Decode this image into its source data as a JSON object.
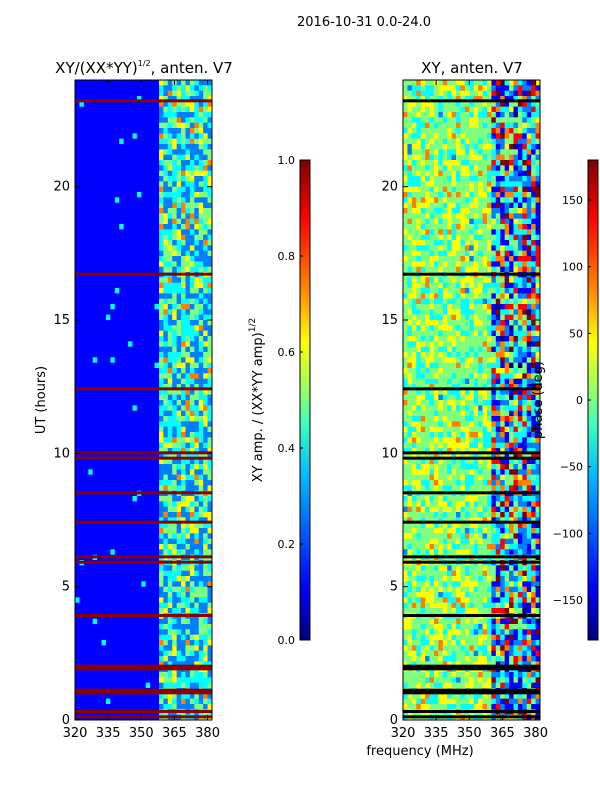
{
  "figure_title": "2016-10-31 0.0-24.0",
  "shared_xlabel": "frequency (MHz)",
  "colormap": [
    "#00007f",
    "#0000ff",
    "#007fff",
    "#00ffff",
    "#7fff7f",
    "#ffff00",
    "#ff7f00",
    "#ff0000",
    "#7f0000"
  ],
  "band_color": "#8b0000",
  "chart_data": [
    {
      "type": "heatmap",
      "title_main": "XY/(XX*YY)",
      "title_exp": "1/2",
      "title_rest": ", anten. V7",
      "xlabel": "",
      "ylabel": "UT (hours)",
      "xlim": [
        320,
        382
      ],
      "ylim": [
        0,
        24
      ],
      "xticks": [
        320,
        335,
        350,
        365,
        380
      ],
      "xtick_labels": [
        "320",
        "335",
        "350",
        "365",
        "380"
      ],
      "yticks": [
        0,
        5,
        10,
        15,
        20
      ],
      "ytick_labels": [
        "0",
        "5",
        "10",
        "15",
        "20"
      ],
      "flagged_hours": [
        0.1,
        0.3,
        1.0,
        1.1,
        1.9,
        2.0,
        3.9,
        5.9,
        6.1,
        7.4,
        8.5,
        9.8,
        10.0,
        12.4,
        16.7,
        23.2
      ],
      "colorbar": {
        "label_main": "XY amp. / (XX*YY amp)",
        "label_exp": "1/2",
        "range": [
          0.0,
          1.0
        ],
        "ticks": [
          0.0,
          0.2,
          0.4,
          0.6,
          0.8,
          1.0
        ],
        "tick_labels": [
          "0.0",
          "0.2",
          "0.4",
          "0.6",
          "0.8",
          "1.0"
        ]
      }
    },
    {
      "type": "heatmap",
      "title_main": "XY, anten. V7",
      "xlabel": "frequency (MHz)",
      "ylabel": "",
      "xlim": [
        320,
        382
      ],
      "ylim": [
        0,
        24
      ],
      "xticks": [
        320,
        335,
        350,
        365,
        380
      ],
      "xtick_labels": [
        "320",
        "335",
        "350",
        "365",
        "380"
      ],
      "yticks": [
        0,
        5,
        10,
        15,
        20
      ],
      "ytick_labels": [
        "0",
        "5",
        "10",
        "15",
        "20"
      ],
      "flagged_hours": [
        0.1,
        0.3,
        1.0,
        1.1,
        1.9,
        2.0,
        3.9,
        5.9,
        6.1,
        7.4,
        8.5,
        9.8,
        10.0,
        12.4,
        16.7,
        23.2
      ],
      "colorbar": {
        "label_main": "phase (deg)",
        "range": [
          -180,
          180
        ],
        "ticks": [
          -150,
          -100,
          -50,
          0,
          50,
          100,
          150
        ],
        "tick_labels": [
          "−150",
          "−100",
          "−50",
          "0",
          "50",
          "100",
          "150"
        ]
      }
    }
  ]
}
